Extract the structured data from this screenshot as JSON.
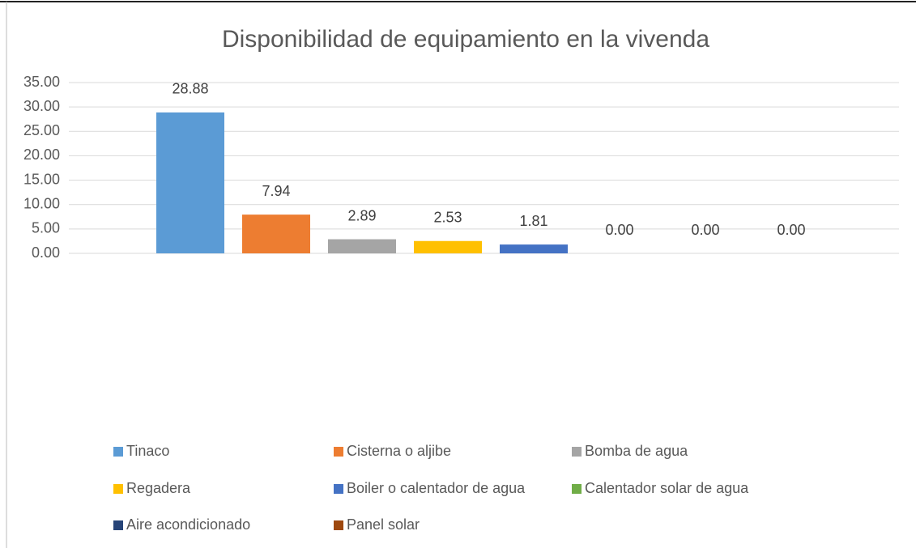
{
  "chart_data": {
    "type": "bar",
    "title": "Disponibilidad de equipamiento en la vivenda",
    "series": [
      {
        "name": "Tinaco",
        "color": "#5b9bd5",
        "values": [
          28.88
        ],
        "value_labels": [
          "28.88"
        ]
      },
      {
        "name": "Cisterna o aljibe",
        "color": "#ed7d31",
        "values": [
          7.94
        ],
        "value_labels": [
          "7.94"
        ]
      },
      {
        "name": "Bomba de agua",
        "color": "#a5a5a5",
        "values": [
          2.89
        ],
        "value_labels": [
          "2.89"
        ]
      },
      {
        "name": "Regadera",
        "color": "#ffc000",
        "values": [
          2.53
        ],
        "value_labels": [
          "2.53"
        ]
      },
      {
        "name": "Boiler o calentador de agua",
        "color": "#4472c4",
        "values": [
          1.81
        ],
        "value_labels": [
          "1.81"
        ]
      },
      {
        "name": "Calentador solar de agua",
        "color": "#70ad47",
        "values": [
          0
        ],
        "value_labels": [
          "0.00"
        ]
      },
      {
        "name": "Aire acondicionado",
        "color": "#264478",
        "values": [
          0
        ],
        "value_labels": [
          "0.00"
        ]
      },
      {
        "name": "Panel solar",
        "color": "#9e480e",
        "values": [
          0
        ],
        "value_labels": [
          "0.00"
        ]
      }
    ],
    "ylim": [
      0,
      35
    ],
    "yticks": [
      {
        "value": 0,
        "label": "0.00"
      },
      {
        "value": 5,
        "label": "5.00"
      },
      {
        "value": 10,
        "label": "10.00"
      },
      {
        "value": 15,
        "label": "15.00"
      },
      {
        "value": 20,
        "label": "20.00"
      },
      {
        "value": 25,
        "label": "25.00"
      },
      {
        "value": 30,
        "label": "30.00"
      },
      {
        "value": 35,
        "label": "35.00"
      }
    ],
    "grid": true,
    "legend": "bottom"
  }
}
